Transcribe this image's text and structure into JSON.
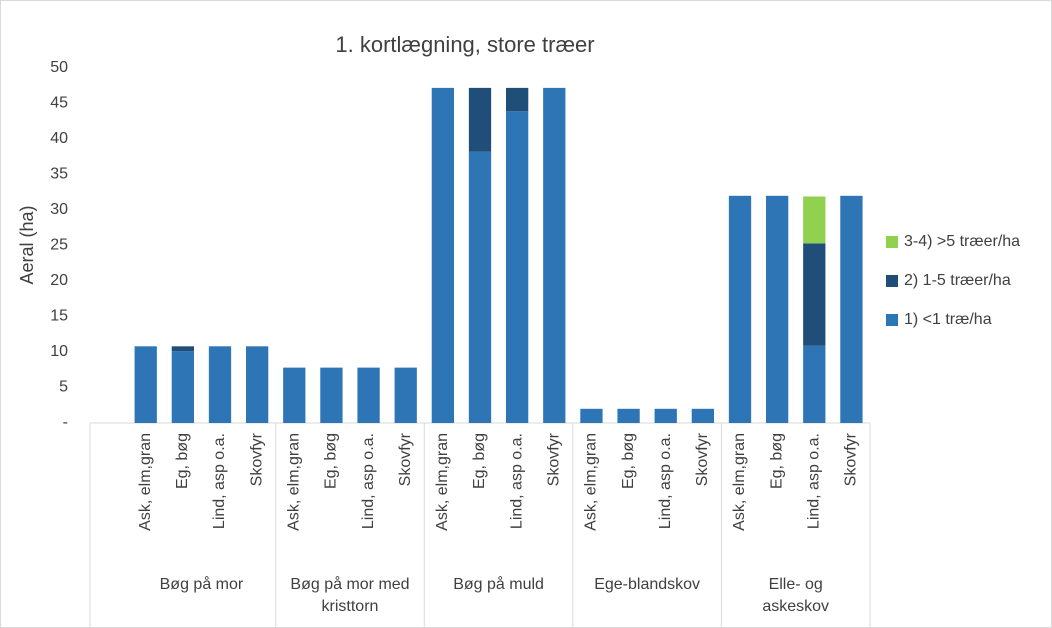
{
  "chart_data": {
    "type": "stacked_bar",
    "title": "1. kortlægning, store træer",
    "y_label": "Aeral (ha)",
    "groups": [
      {
        "name": "Bøg på mor",
        "categories": [
          "Ask, elm,gran",
          "Eg, bøg",
          "Lind, asp o.a.",
          "Skovfyr"
        ]
      },
      {
        "name": "Bøg på mor med\nkristtorn",
        "categories": [
          "Ask, elm,gran",
          "Eg, bøg",
          "Lind, asp o.a.",
          "Skovfyr"
        ]
      },
      {
        "name": "Bøg på muld",
        "categories": [
          "Ask, elm,gran",
          "Eg, bøg",
          "Lind, asp o.a.",
          "Skovfyr"
        ]
      },
      {
        "name": "Ege-blandskov",
        "categories": [
          "Ask, elm,gran",
          "Eg, bøg",
          "Lind, asp o.a.",
          "Skovfyr"
        ]
      },
      {
        "name": "Elle- og\naskeskov",
        "categories": [
          "Ask, elm,gran",
          "Eg, bøg",
          "Lind, asp o.a.",
          "Skovfyr"
        ]
      }
    ],
    "series": [
      {
        "name": "1) <1 træ/ha",
        "color": "#2e75b6",
        "values": [
          10.8,
          10.1,
          10.8,
          10.8,
          7.8,
          7.8,
          7.8,
          7.8,
          47.2,
          38.2,
          43.9,
          47.2,
          2.0,
          2.0,
          2.0,
          2.0,
          32.0,
          32.0,
          10.9,
          32.0
        ]
      },
      {
        "name": "2) 1-5 træer/ha",
        "color": "#1f4e79",
        "values": [
          0,
          0.7,
          0,
          0,
          0,
          0,
          0,
          0,
          0,
          9.0,
          3.3,
          0,
          0,
          0,
          0,
          0,
          0,
          0,
          14.4,
          0
        ]
      },
      {
        "name": "3-4) >5 træer/ha",
        "color": "#92d050",
        "values": [
          0,
          0,
          0,
          0,
          0,
          0,
          0,
          0,
          0,
          0,
          0,
          0,
          0,
          0,
          0,
          0,
          0,
          0,
          6.6,
          0
        ]
      }
    ],
    "ylim": [
      0,
      50
    ],
    "yticks": [
      {
        "value": 0,
        "label": "-"
      },
      5,
      10,
      15,
      20,
      25,
      30,
      35,
      40,
      45,
      50
    ],
    "legend": "right"
  }
}
